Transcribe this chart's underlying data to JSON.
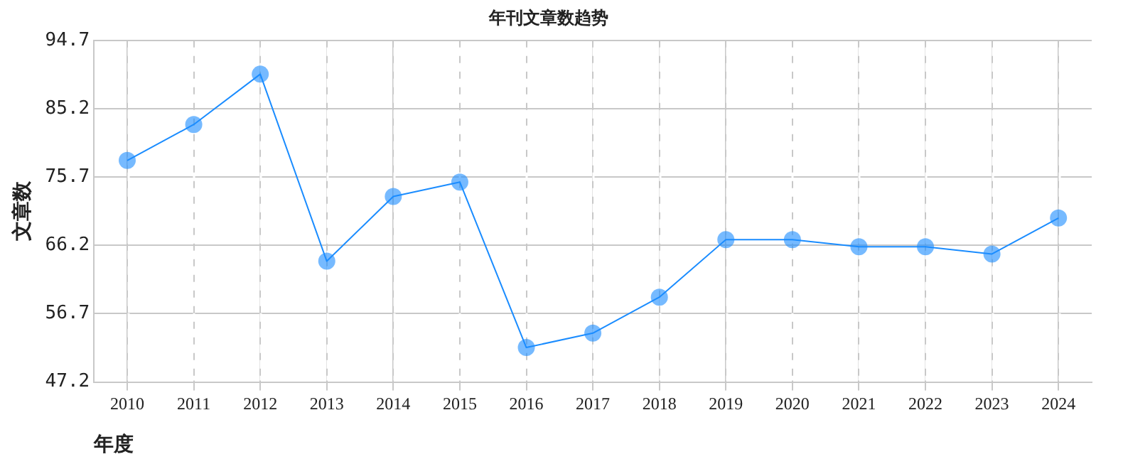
{
  "chart_data": {
    "type": "line",
    "title": "年刊文章数趋势",
    "xlabel": "年度",
    "ylabel": "文章数",
    "categories": [
      "2010",
      "2011",
      "2012",
      "2013",
      "2014",
      "2015",
      "2016",
      "2017",
      "2018",
      "2019",
      "2020",
      "2021",
      "2022",
      "2023",
      "2024"
    ],
    "series": [
      {
        "color": "#1a8cff",
        "values": [
          78,
          83,
          90,
          64,
          73,
          75,
          52,
          54,
          59,
          67,
          67,
          66,
          66,
          65,
          70
        ]
      }
    ],
    "ylim": [
      47.2,
      94.7
    ],
    "yticks": [
      47.2,
      56.7,
      66.2,
      75.7,
      85.2,
      94.7
    ],
    "grid": true,
    "legend": false,
    "marker": "circle",
    "line_style": "solid"
  }
}
